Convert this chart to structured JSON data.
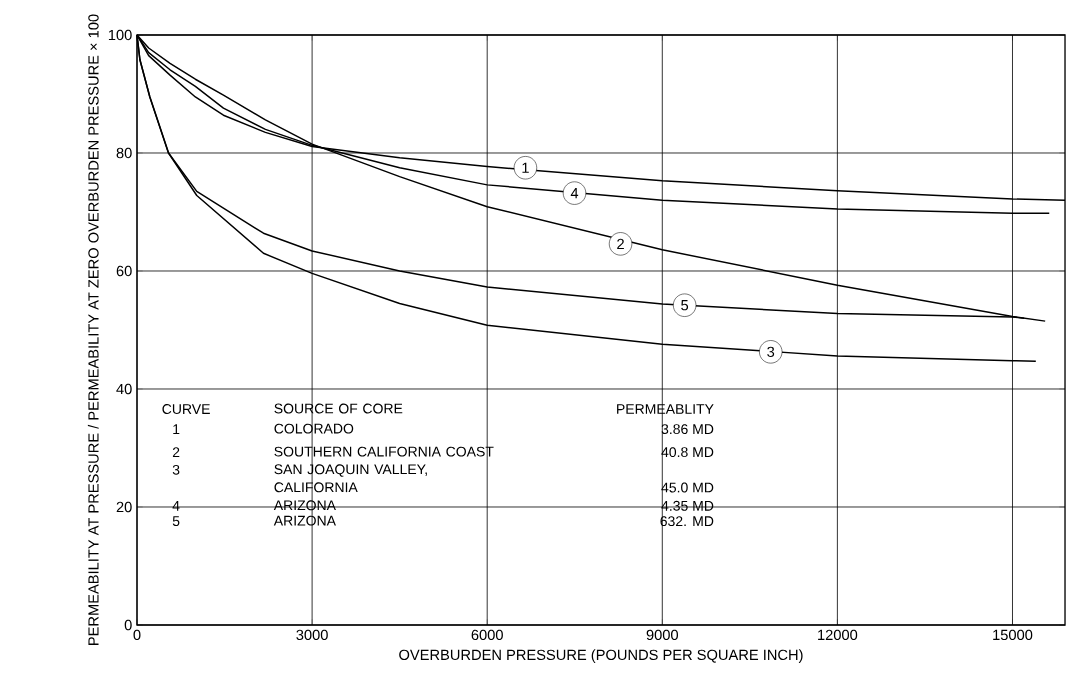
{
  "chart_data": {
    "type": "line",
    "xlabel": "OVERBURDEN PRESSURE (POUNDS PER SQUARE INCH)",
    "ylabel": "PERMEABILITY AT PRESSURE / PERMEABILITY AT ZERO OVERBURDEN PRESSURE × 100",
    "xlim": [
      0,
      15900
    ],
    "ylim": [
      0,
      100
    ],
    "xticks": [
      0,
      3000,
      6000,
      9000,
      12000,
      15000
    ],
    "yticks": [
      0,
      20,
      40,
      60,
      80,
      100
    ],
    "grid": true,
    "marker": "none",
    "line_style": "solid",
    "series": [
      {
        "color": "#000000",
        "x": [
          0,
          200,
          566,
          1000,
          1481,
          2200,
          3000,
          4500,
          6000,
          9000,
          12000,
          15000,
          15900
        ],
        "values": [
          100,
          96.5,
          93.2,
          89.5,
          86.4,
          83.5,
          81.1,
          79.2,
          77.7,
          75.3,
          73.6,
          72.2,
          72.0
        ]
      },
      {
        "color": "#000000",
        "x": [
          0,
          200,
          566,
          1000,
          1481,
          2200,
          3000,
          4500,
          6000,
          9000,
          12000,
          15000,
          15560
        ],
        "values": [
          100,
          97.8,
          95.2,
          92.5,
          89.8,
          85.6,
          81.5,
          76.0,
          70.9,
          63.6,
          57.6,
          52.3,
          51.5
        ]
      },
      {
        "color": "#000000",
        "x": [
          0,
          50,
          220,
          540,
          1024,
          2167,
          3000,
          4500,
          6000,
          9000,
          12000,
          15000,
          15400
        ],
        "values": [
          100,
          95.8,
          89.5,
          80,
          72.8,
          63.0,
          59.6,
          54.5,
          50.8,
          47.6,
          45.6,
          44.8,
          44.7
        ]
      },
      {
        "color": "#000000",
        "x": [
          0,
          200,
          566,
          1000,
          1481,
          2200,
          3000,
          4500,
          6000,
          9000,
          12000,
          15000,
          15630
        ],
        "values": [
          100,
          97.0,
          94.1,
          91.3,
          87.6,
          84.0,
          81.3,
          77.5,
          74.6,
          72.0,
          70.5,
          69.8,
          69.8
        ]
      },
      {
        "color": "#000000",
        "x": [
          0,
          50,
          220,
          540,
          1024,
          2167,
          3000,
          4500,
          6000,
          9000,
          12000,
          15000,
          15200
        ],
        "values": [
          100,
          95.8,
          89.5,
          80,
          73.5,
          66.4,
          63.4,
          60.0,
          57.3,
          54.4,
          52.8,
          52.2,
          52.0
        ]
      }
    ],
    "annotations": [
      {
        "text": "1",
        "x": 6655,
        "y": 77.5
      },
      {
        "text": "4",
        "x": 7496,
        "y": 73.2
      },
      {
        "text": "2",
        "x": 8285,
        "y": 64.6
      },
      {
        "text": "5",
        "x": 9383,
        "y": 54.2
      },
      {
        "text": "3",
        "x": 10858,
        "y": 46.3
      },
      "CURVE",
      "SOURCE OF CORE",
      "PERMEABLITY",
      "1",
      "COLORADO",
      "3.86 MD",
      "2",
      "SOUTHERN CALIFORNIA COAST",
      "40.8 MD",
      "3",
      "SAN JOAQUIN VALLEY, CALIFORNIA",
      "45.0 MD",
      "4",
      "ARIZONA",
      "4.35 MD",
      "5",
      "ARIZONA",
      "632. MD"
    ]
  }
}
